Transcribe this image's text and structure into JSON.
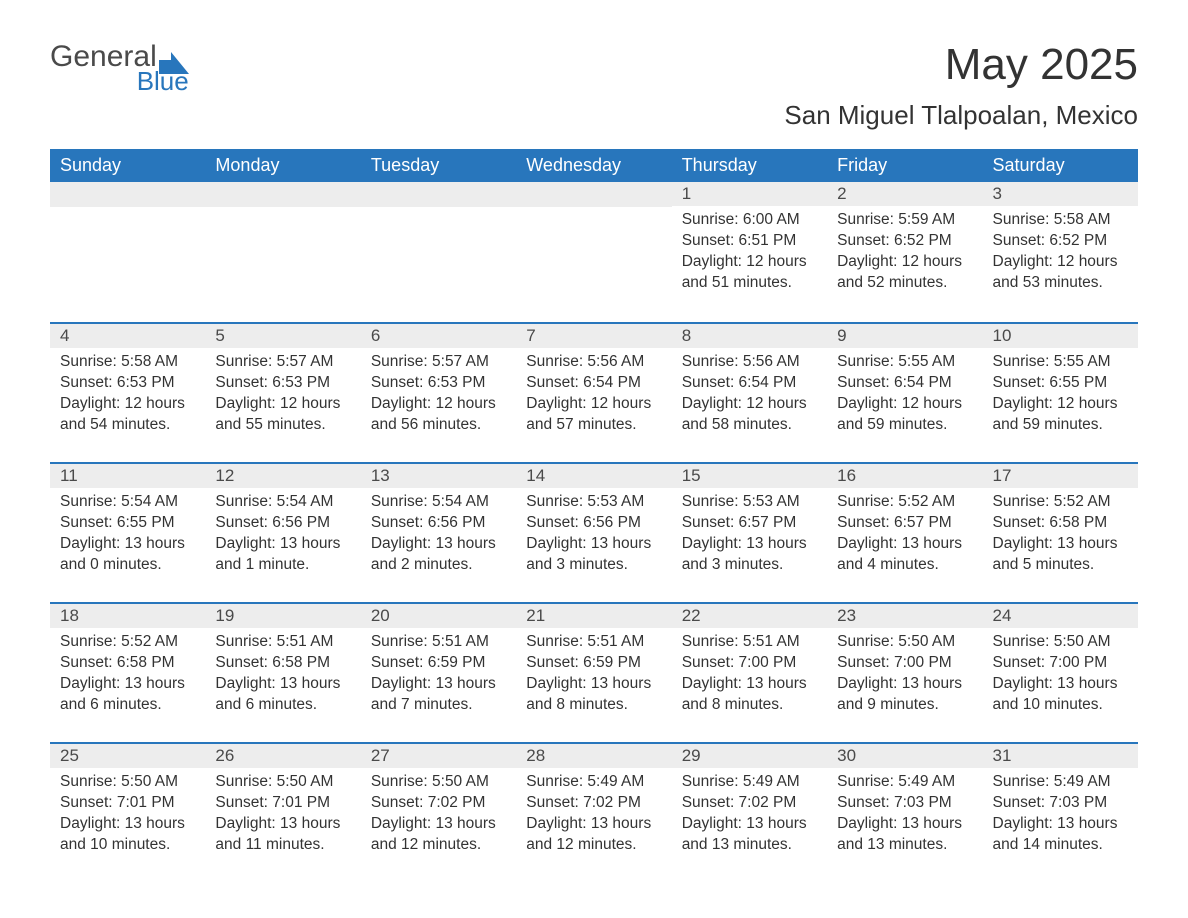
{
  "logo": {
    "text1": "General",
    "text2": "Blue"
  },
  "title": "May 2025",
  "location": "San Miguel Tlalpoalan, Mexico",
  "colors": {
    "header_bg": "#2876bc",
    "header_text": "#ffffff",
    "daynum_bg": "#ededed",
    "cell_text": "#333333",
    "accent": "#2876bc",
    "page_bg": "#ffffff"
  },
  "dayNames": [
    "Sunday",
    "Monday",
    "Tuesday",
    "Wednesday",
    "Thursday",
    "Friday",
    "Saturday"
  ],
  "weeks": [
    [
      null,
      null,
      null,
      null,
      {
        "n": "1",
        "sunrise": "6:00 AM",
        "sunset": "6:51 PM",
        "daylight": "12 hours and 51 minutes."
      },
      {
        "n": "2",
        "sunrise": "5:59 AM",
        "sunset": "6:52 PM",
        "daylight": "12 hours and 52 minutes."
      },
      {
        "n": "3",
        "sunrise": "5:58 AM",
        "sunset": "6:52 PM",
        "daylight": "12 hours and 53 minutes."
      }
    ],
    [
      {
        "n": "4",
        "sunrise": "5:58 AM",
        "sunset": "6:53 PM",
        "daylight": "12 hours and 54 minutes."
      },
      {
        "n": "5",
        "sunrise": "5:57 AM",
        "sunset": "6:53 PM",
        "daylight": "12 hours and 55 minutes."
      },
      {
        "n": "6",
        "sunrise": "5:57 AM",
        "sunset": "6:53 PM",
        "daylight": "12 hours and 56 minutes."
      },
      {
        "n": "7",
        "sunrise": "5:56 AM",
        "sunset": "6:54 PM",
        "daylight": "12 hours and 57 minutes."
      },
      {
        "n": "8",
        "sunrise": "5:56 AM",
        "sunset": "6:54 PM",
        "daylight": "12 hours and 58 minutes."
      },
      {
        "n": "9",
        "sunrise": "5:55 AM",
        "sunset": "6:54 PM",
        "daylight": "12 hours and 59 minutes."
      },
      {
        "n": "10",
        "sunrise": "5:55 AM",
        "sunset": "6:55 PM",
        "daylight": "12 hours and 59 minutes."
      }
    ],
    [
      {
        "n": "11",
        "sunrise": "5:54 AM",
        "sunset": "6:55 PM",
        "daylight": "13 hours and 0 minutes."
      },
      {
        "n": "12",
        "sunrise": "5:54 AM",
        "sunset": "6:56 PM",
        "daylight": "13 hours and 1 minute."
      },
      {
        "n": "13",
        "sunrise": "5:54 AM",
        "sunset": "6:56 PM",
        "daylight": "13 hours and 2 minutes."
      },
      {
        "n": "14",
        "sunrise": "5:53 AM",
        "sunset": "6:56 PM",
        "daylight": "13 hours and 3 minutes."
      },
      {
        "n": "15",
        "sunrise": "5:53 AM",
        "sunset": "6:57 PM",
        "daylight": "13 hours and 3 minutes."
      },
      {
        "n": "16",
        "sunrise": "5:52 AM",
        "sunset": "6:57 PM",
        "daylight": "13 hours and 4 minutes."
      },
      {
        "n": "17",
        "sunrise": "5:52 AM",
        "sunset": "6:58 PM",
        "daylight": "13 hours and 5 minutes."
      }
    ],
    [
      {
        "n": "18",
        "sunrise": "5:52 AM",
        "sunset": "6:58 PM",
        "daylight": "13 hours and 6 minutes."
      },
      {
        "n": "19",
        "sunrise": "5:51 AM",
        "sunset": "6:58 PM",
        "daylight": "13 hours and 6 minutes."
      },
      {
        "n": "20",
        "sunrise": "5:51 AM",
        "sunset": "6:59 PM",
        "daylight": "13 hours and 7 minutes."
      },
      {
        "n": "21",
        "sunrise": "5:51 AM",
        "sunset": "6:59 PM",
        "daylight": "13 hours and 8 minutes."
      },
      {
        "n": "22",
        "sunrise": "5:51 AM",
        "sunset": "7:00 PM",
        "daylight": "13 hours and 8 minutes."
      },
      {
        "n": "23",
        "sunrise": "5:50 AM",
        "sunset": "7:00 PM",
        "daylight": "13 hours and 9 minutes."
      },
      {
        "n": "24",
        "sunrise": "5:50 AM",
        "sunset": "7:00 PM",
        "daylight": "13 hours and 10 minutes."
      }
    ],
    [
      {
        "n": "25",
        "sunrise": "5:50 AM",
        "sunset": "7:01 PM",
        "daylight": "13 hours and 10 minutes."
      },
      {
        "n": "26",
        "sunrise": "5:50 AM",
        "sunset": "7:01 PM",
        "daylight": "13 hours and 11 minutes."
      },
      {
        "n": "27",
        "sunrise": "5:50 AM",
        "sunset": "7:02 PM",
        "daylight": "13 hours and 12 minutes."
      },
      {
        "n": "28",
        "sunrise": "5:49 AM",
        "sunset": "7:02 PM",
        "daylight": "13 hours and 12 minutes."
      },
      {
        "n": "29",
        "sunrise": "5:49 AM",
        "sunset": "7:02 PM",
        "daylight": "13 hours and 13 minutes."
      },
      {
        "n": "30",
        "sunrise": "5:49 AM",
        "sunset": "7:03 PM",
        "daylight": "13 hours and 13 minutes."
      },
      {
        "n": "31",
        "sunrise": "5:49 AM",
        "sunset": "7:03 PM",
        "daylight": "13 hours and 14 minutes."
      }
    ]
  ],
  "labels": {
    "sunrise": "Sunrise: ",
    "sunset": "Sunset: ",
    "daylight": "Daylight: "
  }
}
